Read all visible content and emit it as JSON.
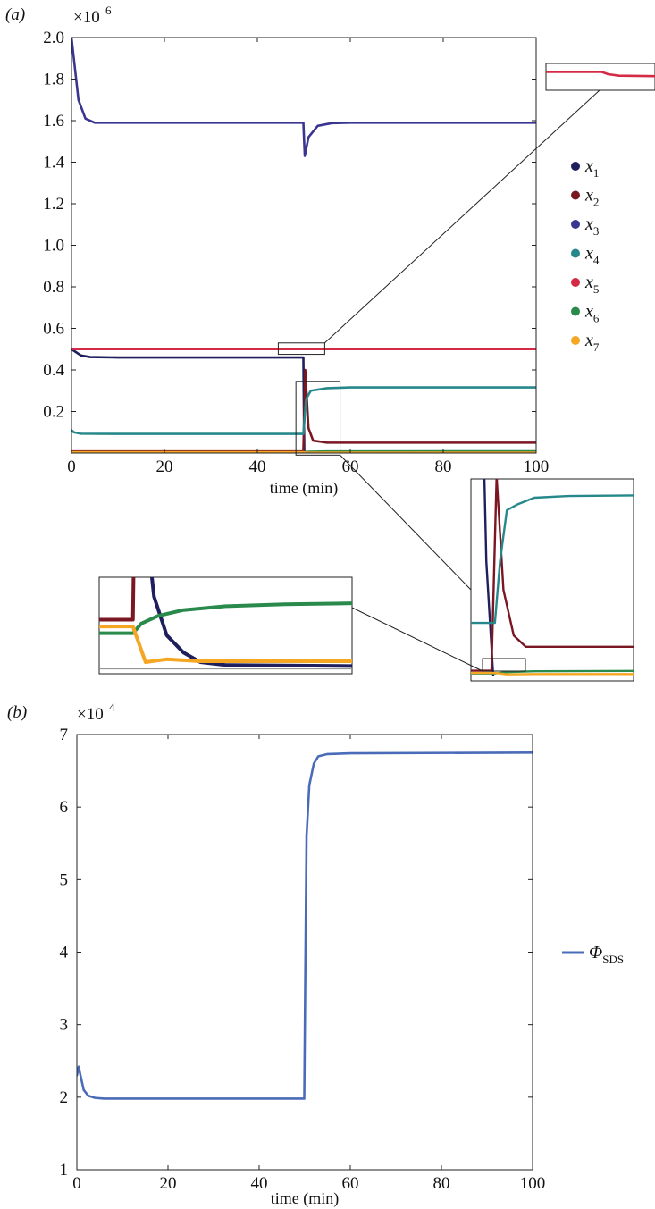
{
  "chart_data": [
    {
      "panel_label": "(a)",
      "type": "line",
      "xlabel": "time (min)",
      "ylabel": "",
      "xlim": [
        0,
        100
      ],
      "ylim": [
        0,
        2000000
      ],
      "x_ticks": [
        0,
        20,
        40,
        60,
        80,
        100
      ],
      "y_ticks": [
        0.2,
        0.4,
        0.6,
        0.8,
        1.0,
        1.2,
        1.4,
        1.6,
        1.8,
        2.0
      ],
      "y_tick_labels": [
        "0.2",
        "0.4",
        "0.6",
        "0.8",
        "1.0",
        "1.2",
        "1.4",
        "1.6",
        "1.8",
        "2.0"
      ],
      "y_multiplier": "×10",
      "y_multiplier_exp": "6",
      "grid": false,
      "legend_position": "right",
      "series": [
        {
          "name": "x",
          "sub": "1",
          "color": "#1f1f5e",
          "x": [
            0,
            2,
            4,
            10,
            49.9,
            50.1,
            100
          ],
          "values": [
            500000,
            470000,
            462000,
            460000,
            460000,
            5000,
            5000
          ]
        },
        {
          "name": "x",
          "sub": "2",
          "color": "#7a1722",
          "x": [
            0,
            49.9,
            50.3,
            51,
            52,
            55,
            100
          ],
          "values": [
            8000,
            8000,
            400000,
            120000,
            60000,
            50000,
            50000
          ]
        },
        {
          "name": "x",
          "sub": "3",
          "color": "#3a3590",
          "x": [
            0,
            0.5,
            1.5,
            3,
            5,
            10,
            49.9,
            50.2,
            51,
            53,
            56,
            60,
            100
          ],
          "values": [
            2000000,
            1900000,
            1700000,
            1610000,
            1590000,
            1590000,
            1590000,
            1430000,
            1520000,
            1575000,
            1588000,
            1590000,
            1590000
          ]
        },
        {
          "name": "x",
          "sub": "4",
          "color": "#26888a",
          "x": [
            0,
            0.5,
            2,
            10,
            49.9,
            50.5,
            51.5,
            55,
            60,
            100
          ],
          "values": [
            110000,
            100000,
            93000,
            92000,
            92000,
            260000,
            300000,
            312000,
            316000,
            316000
          ]
        },
        {
          "name": "x",
          "sub": "5",
          "color": "#d42a45",
          "x": [
            0,
            100
          ],
          "values": [
            500000,
            500000
          ]
        },
        {
          "name": "x",
          "sub": "6",
          "color": "#2a8a4c",
          "x": [
            0,
            49.9,
            51,
            55,
            100
          ],
          "values": [
            3000,
            3000,
            6000,
            8000,
            8500
          ]
        },
        {
          "name": "x",
          "sub": "7",
          "color": "#f5a623",
          "x": [
            0,
            49.9,
            50.5,
            55,
            100
          ],
          "values": [
            4000,
            4000,
            1500,
            2000,
            2000
          ]
        }
      ]
    },
    {
      "panel_label": "(b)",
      "type": "line",
      "xlabel": "time (min)",
      "ylabel": "",
      "xlim": [
        0,
        100
      ],
      "ylim": [
        1,
        7
      ],
      "x_ticks": [
        0,
        20,
        40,
        60,
        80,
        100
      ],
      "y_ticks": [
        1,
        2,
        3,
        4,
        5,
        6,
        7
      ],
      "y_multiplier": "×10",
      "y_multiplier_exp": "4",
      "grid": false,
      "legend_position": "right",
      "series": [
        {
          "name": "Φ",
          "sub": "SDS",
          "color": "#4a6cb8",
          "x": [
            0,
            0.4,
            0.8,
            1.5,
            2.5,
            4,
            6,
            10,
            49.9,
            50.1,
            50.4,
            51,
            52,
            53,
            55,
            60,
            100
          ],
          "values": [
            2.3,
            2.42,
            2.3,
            2.1,
            2.02,
            1.99,
            1.98,
            1.98,
            1.98,
            3.5,
            5.6,
            6.3,
            6.6,
            6.7,
            6.73,
            6.74,
            6.75
          ]
        }
      ]
    }
  ]
}
